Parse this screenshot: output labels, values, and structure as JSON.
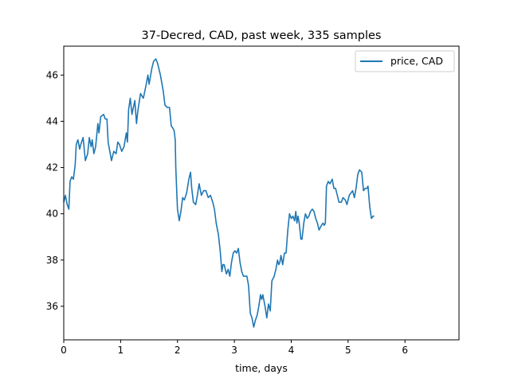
{
  "chart_data": {
    "type": "line",
    "title": "37-Decred, CAD, past week, 335 samples",
    "xlabel": "time, days",
    "ylabel": "",
    "xlim": [
      0,
      6.95
    ],
    "ylim": [
      34.55,
      47.25
    ],
    "xticks": [
      0,
      1,
      2,
      3,
      4,
      5,
      6
    ],
    "yticks": [
      36,
      38,
      40,
      42,
      44,
      46
    ],
    "grid": false,
    "legend_position": "top-right",
    "series": [
      {
        "name": "price, CAD",
        "color": "#1f77b4",
        "points": [
          [
            0.0,
            40.5
          ],
          [
            0.03,
            40.8
          ],
          [
            0.06,
            40.4
          ],
          [
            0.09,
            40.2
          ],
          [
            0.11,
            41.4
          ],
          [
            0.14,
            41.6
          ],
          [
            0.17,
            41.5
          ],
          [
            0.2,
            42.1
          ],
          [
            0.22,
            43.0
          ],
          [
            0.25,
            43.2
          ],
          [
            0.28,
            42.8
          ],
          [
            0.3,
            43.0
          ],
          [
            0.34,
            43.3
          ],
          [
            0.38,
            42.3
          ],
          [
            0.42,
            42.6
          ],
          [
            0.45,
            43.3
          ],
          [
            0.48,
            42.9
          ],
          [
            0.5,
            43.2
          ],
          [
            0.53,
            42.6
          ],
          [
            0.56,
            42.9
          ],
          [
            0.6,
            43.9
          ],
          [
            0.62,
            43.5
          ],
          [
            0.65,
            44.2
          ],
          [
            0.7,
            44.3
          ],
          [
            0.73,
            44.1
          ],
          [
            0.76,
            44.1
          ],
          [
            0.78,
            43.1
          ],
          [
            0.81,
            42.7
          ],
          [
            0.84,
            42.3
          ],
          [
            0.88,
            42.7
          ],
          [
            0.92,
            42.6
          ],
          [
            0.95,
            43.1
          ],
          [
            0.98,
            43.0
          ],
          [
            1.02,
            42.7
          ],
          [
            1.06,
            42.9
          ],
          [
            1.1,
            43.5
          ],
          [
            1.12,
            43.1
          ],
          [
            1.14,
            44.5
          ],
          [
            1.17,
            45.0
          ],
          [
            1.2,
            44.3
          ],
          [
            1.25,
            44.9
          ],
          [
            1.28,
            43.9
          ],
          [
            1.3,
            44.4
          ],
          [
            1.35,
            45.2
          ],
          [
            1.4,
            45.0
          ],
          [
            1.45,
            45.6
          ],
          [
            1.48,
            46.0
          ],
          [
            1.5,
            45.6
          ],
          [
            1.55,
            46.3
          ],
          [
            1.58,
            46.6
          ],
          [
            1.62,
            46.7
          ],
          [
            1.65,
            46.5
          ],
          [
            1.7,
            46.0
          ],
          [
            1.75,
            45.3
          ],
          [
            1.78,
            44.7
          ],
          [
            1.82,
            44.6
          ],
          [
            1.86,
            44.6
          ],
          [
            1.89,
            43.8
          ],
          [
            1.92,
            43.7
          ],
          [
            1.94,
            43.6
          ],
          [
            1.96,
            43.2
          ],
          [
            1.97,
            42.0
          ],
          [
            2.0,
            40.2
          ],
          [
            2.03,
            39.7
          ],
          [
            2.06,
            40.1
          ],
          [
            2.09,
            40.7
          ],
          [
            2.12,
            40.6
          ],
          [
            2.16,
            40.9
          ],
          [
            2.2,
            41.5
          ],
          [
            2.23,
            41.8
          ],
          [
            2.25,
            41.1
          ],
          [
            2.28,
            40.5
          ],
          [
            2.32,
            40.4
          ],
          [
            2.35,
            40.8
          ],
          [
            2.38,
            41.3
          ],
          [
            2.42,
            40.8
          ],
          [
            2.46,
            41.0
          ],
          [
            2.5,
            41.0
          ],
          [
            2.54,
            40.7
          ],
          [
            2.58,
            40.8
          ],
          [
            2.62,
            40.5
          ],
          [
            2.65,
            40.2
          ],
          [
            2.68,
            39.6
          ],
          [
            2.72,
            39.1
          ],
          [
            2.75,
            38.4
          ],
          [
            2.78,
            37.5
          ],
          [
            2.8,
            37.8
          ],
          [
            2.82,
            37.8
          ],
          [
            2.86,
            37.4
          ],
          [
            2.89,
            37.6
          ],
          [
            2.92,
            37.3
          ],
          [
            2.95,
            37.9
          ],
          [
            2.98,
            38.3
          ],
          [
            3.01,
            38.4
          ],
          [
            3.04,
            38.3
          ],
          [
            3.07,
            38.5
          ],
          [
            3.1,
            37.9
          ],
          [
            3.13,
            37.5
          ],
          [
            3.16,
            37.3
          ],
          [
            3.19,
            37.3
          ],
          [
            3.22,
            37.3
          ],
          [
            3.25,
            36.9
          ],
          [
            3.28,
            35.7
          ],
          [
            3.31,
            35.5
          ],
          [
            3.34,
            35.1
          ],
          [
            3.37,
            35.4
          ],
          [
            3.4,
            35.6
          ],
          [
            3.43,
            36.0
          ],
          [
            3.46,
            36.5
          ],
          [
            3.48,
            36.3
          ],
          [
            3.5,
            36.5
          ],
          [
            3.54,
            36.0
          ],
          [
            3.57,
            35.5
          ],
          [
            3.6,
            36.1
          ],
          [
            3.63,
            35.8
          ],
          [
            3.66,
            37.1
          ],
          [
            3.7,
            37.3
          ],
          [
            3.73,
            37.6
          ],
          [
            3.76,
            38.0
          ],
          [
            3.78,
            37.8
          ],
          [
            3.8,
            37.9
          ],
          [
            3.82,
            38.2
          ],
          [
            3.85,
            37.8
          ],
          [
            3.88,
            38.3
          ],
          [
            3.91,
            38.3
          ],
          [
            3.94,
            39.3
          ],
          [
            3.97,
            40.0
          ],
          [
            4.0,
            39.8
          ],
          [
            4.03,
            39.9
          ],
          [
            4.06,
            39.7
          ],
          [
            4.08,
            40.1
          ],
          [
            4.1,
            39.6
          ],
          [
            4.12,
            39.9
          ],
          [
            4.14,
            39.6
          ],
          [
            4.17,
            38.9
          ],
          [
            4.19,
            38.9
          ],
          [
            4.22,
            39.6
          ],
          [
            4.25,
            40.0
          ],
          [
            4.28,
            39.8
          ],
          [
            4.31,
            39.9
          ],
          [
            4.34,
            40.1
          ],
          [
            4.37,
            40.2
          ],
          [
            4.4,
            40.1
          ],
          [
            4.43,
            39.8
          ],
          [
            4.46,
            39.6
          ],
          [
            4.49,
            39.3
          ],
          [
            4.53,
            39.5
          ],
          [
            4.56,
            39.6
          ],
          [
            4.58,
            39.5
          ],
          [
            4.6,
            39.6
          ],
          [
            4.62,
            41.2
          ],
          [
            4.65,
            41.4
          ],
          [
            4.68,
            41.3
          ],
          [
            4.72,
            41.5
          ],
          [
            4.75,
            41.1
          ],
          [
            4.78,
            41.1
          ],
          [
            4.81,
            40.8
          ],
          [
            4.84,
            40.5
          ],
          [
            4.88,
            40.5
          ],
          [
            4.91,
            40.7
          ],
          [
            4.95,
            40.6
          ],
          [
            4.98,
            40.4
          ],
          [
            5.02,
            40.8
          ],
          [
            5.05,
            40.9
          ],
          [
            5.08,
            41.0
          ],
          [
            5.11,
            40.7
          ],
          [
            5.14,
            41.1
          ],
          [
            5.17,
            41.7
          ],
          [
            5.2,
            41.9
          ],
          [
            5.24,
            41.8
          ],
          [
            5.27,
            41.0
          ],
          [
            5.3,
            41.1
          ],
          [
            5.33,
            41.1
          ],
          [
            5.35,
            41.2
          ],
          [
            5.38,
            40.3
          ],
          [
            5.41,
            39.8
          ],
          [
            5.44,
            39.9
          ],
          [
            5.46,
            39.9
          ]
        ]
      }
    ]
  }
}
